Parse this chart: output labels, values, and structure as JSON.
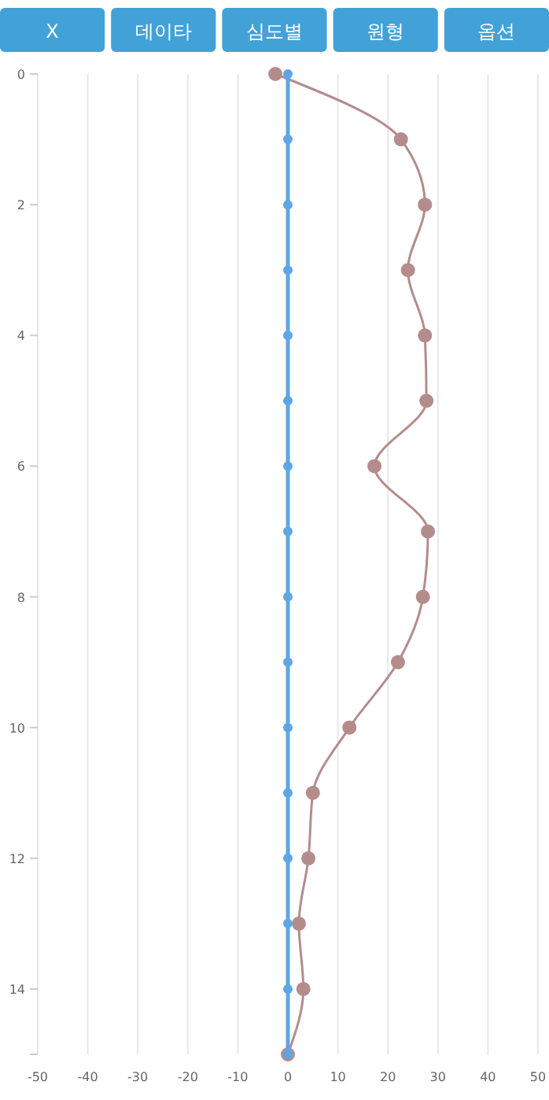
{
  "chart_data": {
    "type": "line",
    "annotations": [
      "X",
      "데이타",
      "심도별",
      "원형",
      "옵션"
    ],
    "xlim": [
      -50,
      50
    ],
    "xticks": [
      -50,
      -40,
      -30,
      -20,
      -10,
      0,
      10,
      20,
      30,
      40,
      50
    ],
    "ylim": [
      15,
      0
    ],
    "yticks": [
      0,
      2,
      4,
      6,
      8,
      10,
      12,
      14,
      {
        "value": 15,
        "label": null
      }
    ],
    "grid": "x",
    "marker": "circle",
    "series": [
      {
        "color": "#5ea6e6",
        "x": [
          0,
          0,
          0,
          0,
          0,
          0,
          0,
          0,
          0,
          0,
          0,
          0,
          0,
          0,
          0,
          0
        ],
        "values": [
          0,
          1,
          2,
          3,
          4,
          5,
          6,
          7,
          8,
          9,
          10,
          11,
          12,
          13,
          14,
          15
        ]
      },
      {
        "color": "#b48c8c",
        "x": [
          -2.5,
          22.6,
          27.4,
          24,
          27.4,
          27.7,
          17.3,
          28,
          27,
          22,
          12.3,
          5,
          4.1,
          2.2,
          3.1,
          0
        ],
        "values": [
          0,
          1,
          2,
          3,
          4,
          5,
          6,
          7,
          8,
          9,
          10,
          11,
          12,
          13,
          14,
          15
        ]
      }
    ]
  }
}
